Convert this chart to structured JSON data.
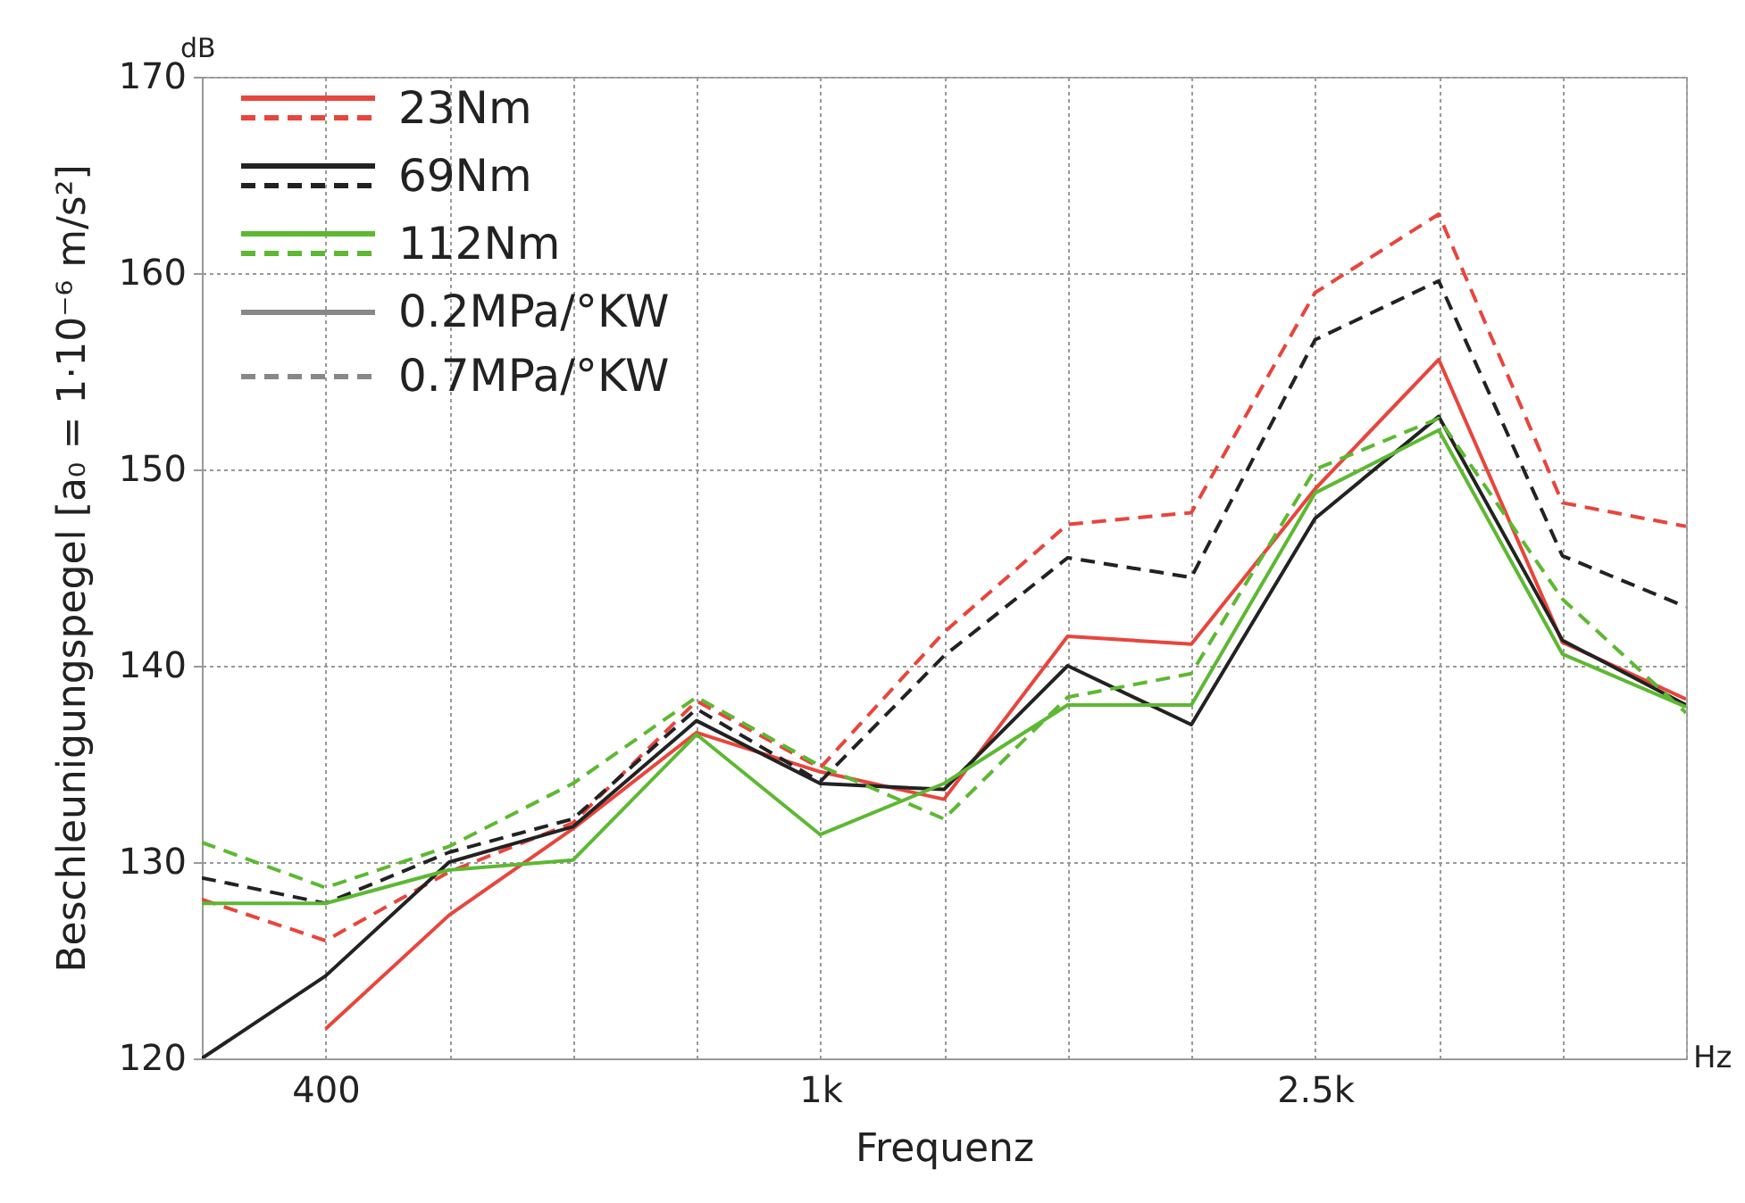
{
  "chart_data": {
    "type": "line",
    "xlabel": "Frequenz",
    "ylabel": "Beschleunigungspegel [a₀ = 1·10⁻⁶ m/s²]",
    "categories": [
      null,
      "400",
      null,
      null,
      null,
      "1k",
      null,
      null,
      null,
      "2.5k",
      null,
      null,
      null
    ],
    "ylim": [
      120,
      170
    ],
    "yticks": [
      120,
      130,
      140,
      150,
      160,
      170
    ],
    "grid": true,
    "legend": "top left",
    "annotations": [
      "dB",
      "Hz",
      "0.2MPa/°KW",
      "0.7MPa/°KW"
    ],
    "series": [
      {
        "name": "23Nm",
        "color": "#e8453c",
        "line_style": "solid",
        "values": [
          null,
          121.5,
          127.3,
          131.7,
          136.6,
          134.6,
          133.2,
          141.5,
          141.1,
          149,
          155.6,
          141.2,
          138.3
        ]
      },
      {
        "color": "#e8453c",
        "line_style": "dashed",
        "values": [
          128.1,
          126,
          129.5,
          132,
          138.2,
          134.8,
          141.7,
          147.2,
          147.8,
          159,
          163,
          148.3,
          147.1
        ]
      },
      {
        "name": "69Nm",
        "color": "#222222",
        "line_style": "solid",
        "values": [
          120,
          124.2,
          130,
          131.8,
          137.2,
          134,
          133.7,
          140,
          137,
          147.5,
          152.7,
          141.3,
          138
        ]
      },
      {
        "color": "#222222",
        "line_style": "dashed",
        "values": [
          129.2,
          127.9,
          130.5,
          132.2,
          137.8,
          134.1,
          140.5,
          145.5,
          144.5,
          156.6,
          159.6,
          145.6,
          143
        ]
      },
      {
        "name": "112Nm",
        "color": "#5db832",
        "line_style": "solid",
        "values": [
          127.9,
          127.9,
          129.6,
          130.1,
          136.5,
          131.4,
          134,
          138,
          138,
          148.8,
          152,
          140.6,
          137.9
        ]
      },
      {
        "color": "#5db832",
        "line_style": "dashed",
        "values": [
          131,
          128.7,
          130.8,
          134,
          138.4,
          134.9,
          132.2,
          138.4,
          139.6,
          150,
          152.6,
          143.4,
          137.6
        ]
      }
    ]
  }
}
